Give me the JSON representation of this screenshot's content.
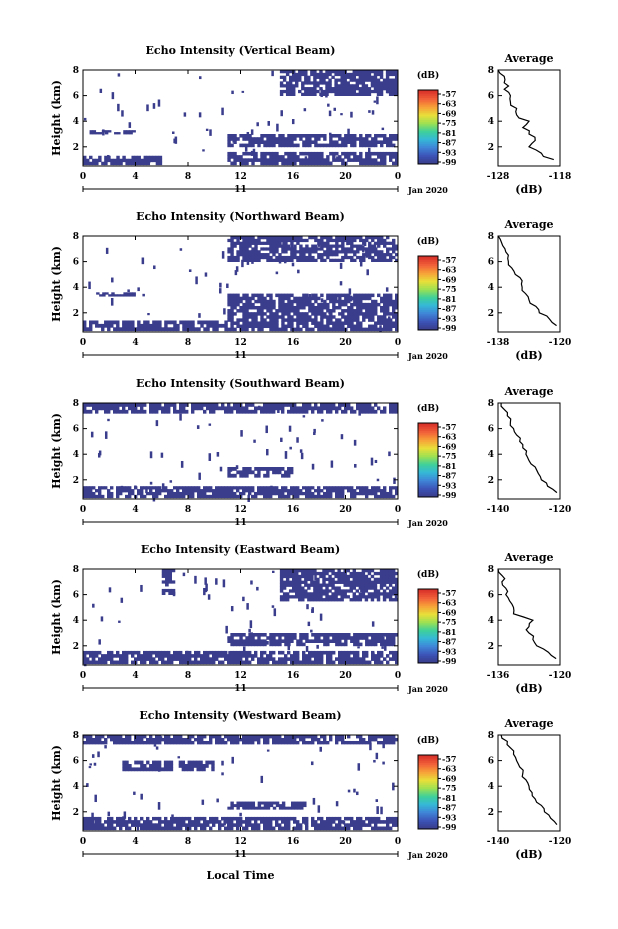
{
  "figure": {
    "bottom_label": "Local Time",
    "date_label": "Jan 2020",
    "day_label": "11",
    "ylabel": "Height (km)",
    "colorbar_unit": "(dB)",
    "colorbar_ticks": [
      "-57",
      "-63",
      "-69",
      "-75",
      "-81",
      "-87",
      "-93",
      "-99"
    ],
    "colormap": [
      "#3a3c8c",
      "#3c55b8",
      "#3f86d8",
      "#34b8d6",
      "#3fd19a",
      "#9ee051",
      "#e8df3a",
      "#f7a338",
      "#f2613a",
      "#d9342b"
    ],
    "echo_color": "#3a3c8c"
  },
  "chart_data": [
    {
      "type": "heatmap",
      "title": "Echo Intensity (Vertical Beam)",
      "ylabel": "Height (km)",
      "x_ticks": [
        "0",
        "4",
        "8",
        "12",
        "16",
        "20",
        "0"
      ],
      "y_ticks": [
        "2",
        "4",
        "6",
        "8"
      ],
      "xlim": [
        0,
        24
      ],
      "ylim": [
        0.5,
        8
      ],
      "colorbar": {
        "label": "(dB)",
        "ticks": [
          -57,
          -63,
          -69,
          -75,
          -81,
          -87,
          -93,
          -99
        ]
      },
      "echo_layers": [
        {
          "x0": 0,
          "x1": 6,
          "y0": 0.6,
          "y1": 1.3
        },
        {
          "x0": 11,
          "x1": 24,
          "y0": 0.6,
          "y1": 1.6
        },
        {
          "x0": 11,
          "x1": 24,
          "y0": 2.0,
          "y1": 3.0
        },
        {
          "x0": 15,
          "x1": 24,
          "y0": 6.0,
          "y1": 8.0
        },
        {
          "x0": 0.5,
          "x1": 4,
          "y0": 3.0,
          "y1": 3.3
        }
      ],
      "average_profile": {
        "title": "Average",
        "xlabel": "(dB)",
        "x_ticks": [
          -128,
          -118
        ],
        "xlim": [
          -128,
          -118
        ],
        "y_ticks": [
          2,
          4,
          6,
          8
        ],
        "ylim": [
          0.5,
          8
        ],
        "height": [
          1,
          1.5,
          2,
          2.5,
          3,
          3.5,
          4,
          4.5,
          5,
          5.5,
          6,
          6.5,
          7,
          7.5,
          8
        ],
        "value": [
          -119,
          -121,
          -123,
          -122,
          -123,
          -124,
          -123,
          -125,
          -125,
          -126,
          -126,
          -127,
          -127,
          -127,
          -128
        ]
      }
    },
    {
      "type": "heatmap",
      "title": "Echo Intensity (Northward Beam)",
      "ylabel": "Height (km)",
      "x_ticks": [
        "0",
        "4",
        "8",
        "12",
        "16",
        "20",
        "0"
      ],
      "y_ticks": [
        "2",
        "4",
        "6",
        "8"
      ],
      "xlim": [
        0,
        24
      ],
      "ylim": [
        0.5,
        8
      ],
      "colorbar": {
        "label": "(dB)",
        "ticks": [
          -57,
          -63,
          -69,
          -75,
          -81,
          -87,
          -93,
          -99
        ]
      },
      "echo_layers": [
        {
          "x0": 0,
          "x1": 11,
          "y0": 0.6,
          "y1": 1.4
        },
        {
          "x0": 11,
          "x1": 24,
          "y0": 0.6,
          "y1": 3.5
        },
        {
          "x0": 11,
          "x1": 24,
          "y0": 6.0,
          "y1": 8.0
        },
        {
          "x0": 1,
          "x1": 4,
          "y0": 3.3,
          "y1": 3.6
        }
      ],
      "average_profile": {
        "title": "Average",
        "xlabel": "(dB)",
        "x_ticks": [
          -138,
          -120
        ],
        "xlim": [
          -138,
          -120
        ],
        "y_ticks": [
          2,
          4,
          6,
          8
        ],
        "ylim": [
          0.5,
          8
        ],
        "height": [
          1,
          1.5,
          2,
          2.5,
          3,
          3.5,
          4,
          4.5,
          5,
          5.5,
          6,
          6.5,
          7,
          7.5,
          8
        ],
        "value": [
          -121,
          -123,
          -126,
          -127,
          -129,
          -130,
          -131,
          -131,
          -133,
          -134,
          -135,
          -135,
          -136,
          -137,
          -138
        ]
      }
    },
    {
      "type": "heatmap",
      "title": "Echo Intensity (Southward Beam)",
      "ylabel": "Height (km)",
      "x_ticks": [
        "0",
        "4",
        "8",
        "12",
        "16",
        "20",
        "0"
      ],
      "y_ticks": [
        "2",
        "4",
        "6",
        "8"
      ],
      "xlim": [
        0,
        24
      ],
      "ylim": [
        0.5,
        8
      ],
      "colorbar": {
        "label": "(dB)",
        "ticks": [
          -57,
          -63,
          -69,
          -75,
          -81,
          -87,
          -93,
          -99
        ]
      },
      "echo_layers": [
        {
          "x0": 0,
          "x1": 24,
          "y0": 0.6,
          "y1": 1.5
        },
        {
          "x0": 11,
          "x1": 16,
          "y0": 2.2,
          "y1": 3.0
        },
        {
          "x0": 0,
          "x1": 24,
          "y0": 7.2,
          "y1": 8.0
        }
      ],
      "average_profile": {
        "title": "Average",
        "xlabel": "",
        "x_ticks": [
          -140,
          -120
        ],
        "xlim": [
          -140,
          -120
        ],
        "y_ticks": [
          2,
          4,
          6,
          8
        ],
        "ylim": [
          0.5,
          8
        ],
        "height": [
          1,
          1.5,
          2,
          2.5,
          3,
          3.5,
          4,
          4.5,
          5,
          5.5,
          6,
          6.5,
          7,
          7.5,
          8
        ],
        "value": [
          -121,
          -124,
          -126,
          -127,
          -128,
          -130,
          -131,
          -132,
          -133,
          -134,
          -135,
          -136,
          -137,
          -138,
          -139
        ]
      }
    },
    {
      "type": "heatmap",
      "title": "Echo Intensity (Eastward Beam)",
      "ylabel": "Height (km)",
      "x_ticks": [
        "0",
        "4",
        "8",
        "12",
        "16",
        "20",
        "0"
      ],
      "y_ticks": [
        "2",
        "4",
        "6",
        "8"
      ],
      "xlim": [
        0,
        24
      ],
      "ylim": [
        0.5,
        8
      ],
      "colorbar": {
        "label": "(dB)",
        "ticks": [
          -57,
          -63,
          -69,
          -75,
          -81,
          -87,
          -93,
          -99
        ]
      },
      "echo_layers": [
        {
          "x0": 0,
          "x1": 24,
          "y0": 0.6,
          "y1": 1.6
        },
        {
          "x0": 11,
          "x1": 24,
          "y0": 2.0,
          "y1": 3.0
        },
        {
          "x0": 15,
          "x1": 24,
          "y0": 5.5,
          "y1": 8.0
        },
        {
          "x0": 6,
          "x1": 7,
          "y0": 6.0,
          "y1": 8.0
        }
      ],
      "average_profile": {
        "title": "Average",
        "xlabel": "(dB)",
        "x_ticks": [
          -136,
          -120
        ],
        "xlim": [
          -136,
          -120
        ],
        "y_ticks": [
          2,
          4,
          6,
          8
        ],
        "ylim": [
          0.5,
          8
        ],
        "height": [
          1,
          1.5,
          2,
          2.5,
          3,
          3.5,
          4,
          4.5,
          5,
          5.5,
          6,
          6.5,
          7,
          7.5,
          8
        ],
        "value": [
          -121,
          -123,
          -126,
          -127,
          -128,
          -128,
          -127,
          -132,
          -132,
          -133,
          -134,
          -134,
          -135,
          -135,
          -136
        ]
      }
    },
    {
      "type": "heatmap",
      "title": "Echo Intensity (Westward Beam)",
      "ylabel": "Height (km)",
      "x_ticks": [
        "0",
        "4",
        "8",
        "12",
        "16",
        "20",
        "0"
      ],
      "y_ticks": [
        "2",
        "4",
        "6",
        "8"
      ],
      "xlim": [
        0,
        24
      ],
      "ylim": [
        0.5,
        8
      ],
      "colorbar": {
        "label": "(dB)",
        "ticks": [
          -57,
          -63,
          -69,
          -75,
          -81,
          -87,
          -93,
          -99
        ]
      },
      "echo_layers": [
        {
          "x0": 0,
          "x1": 24,
          "y0": 0.6,
          "y1": 1.6
        },
        {
          "x0": 11,
          "x1": 17,
          "y0": 2.2,
          "y1": 2.8
        },
        {
          "x0": 0,
          "x1": 24,
          "y0": 7.3,
          "y1": 8.0
        },
        {
          "x0": 3,
          "x1": 10,
          "y0": 5.2,
          "y1": 6.0
        }
      ],
      "average_profile": {
        "title": "Average",
        "xlabel": "(dB)",
        "x_ticks": [
          -140,
          -120
        ],
        "xlim": [
          -140,
          -120
        ],
        "y_ticks": [
          2,
          4,
          6,
          8
        ],
        "ylim": [
          0.5,
          8
        ],
        "height": [
          1,
          1.5,
          2,
          2.5,
          3,
          3.5,
          4,
          4.5,
          5,
          5.5,
          6,
          6.5,
          7,
          7.5,
          8
        ],
        "value": [
          -121,
          -123,
          -125,
          -126,
          -128,
          -129,
          -130,
          -131,
          -132,
          -133,
          -134,
          -135,
          -136,
          -137,
          -139
        ]
      }
    }
  ]
}
